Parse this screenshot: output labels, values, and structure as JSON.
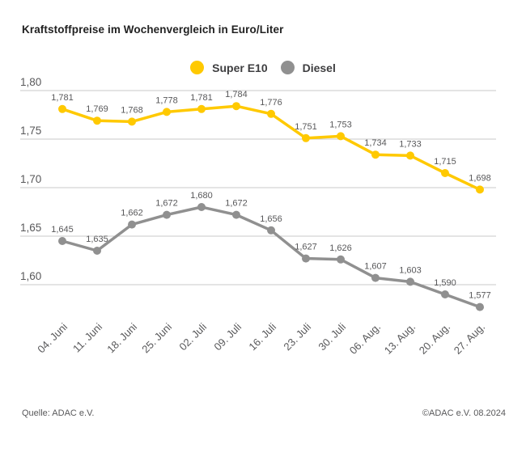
{
  "title": "Kraftstoffpreise im Wochenvergleich in Euro/Liter",
  "legend": [
    {
      "label": "Super E10",
      "color": "#FFC900"
    },
    {
      "label": "Diesel",
      "color": "#909090"
    }
  ],
  "footer": {
    "source": "Quelle: ADAC e.V.",
    "copyright": "©ADAC e.V. 08.2024"
  },
  "colors": {
    "grid": "#c9c9c9",
    "tick_text": "#58585a",
    "label_text": "#58585a",
    "title_text": "#222222"
  },
  "chart_data": {
    "type": "line",
    "title": "Kraftstoffpreise im Wochenvergleich in Euro/Liter",
    "ylabel": "Euro/Liter",
    "xlabel": "",
    "grid": true,
    "legend_position": "top-center",
    "ylim": [
      1.575,
      1.8
    ],
    "yticks": [
      1.8,
      1.75,
      1.7,
      1.65,
      1.6
    ],
    "ytick_labels": [
      "1,80",
      "1,75",
      "1,70",
      "1,65",
      "1,60"
    ],
    "categories": [
      "04. Juni",
      "11. Juni",
      "18. Juni",
      "25. Juni",
      "02. Juli",
      "09. Juli",
      "16. Juli",
      "23. Juli",
      "30. Juli",
      "06. Aug.",
      "13. Aug.",
      "20. Aug.",
      "27. Aug."
    ],
    "series": [
      {
        "name": "Super E10",
        "color": "#FFC900",
        "values": [
          1.781,
          1.769,
          1.768,
          1.778,
          1.781,
          1.784,
          1.776,
          1.751,
          1.753,
          1.734,
          1.733,
          1.715,
          1.698
        ],
        "labels": [
          "1,781",
          "1,769",
          "1,768",
          "1,778",
          "1,781",
          "1,784",
          "1,776",
          "1,751",
          "1,753",
          "1,734",
          "1,733",
          "1,715",
          "1,698"
        ]
      },
      {
        "name": "Diesel",
        "color": "#909090",
        "values": [
          1.645,
          1.635,
          1.662,
          1.672,
          1.68,
          1.672,
          1.656,
          1.627,
          1.626,
          1.607,
          1.603,
          1.59,
          1.577
        ],
        "labels": [
          "1,645",
          "1,635",
          "1,662",
          "1,672",
          "1,680",
          "1,672",
          "1,656",
          "1,627",
          "1,626",
          "1,607",
          "1,603",
          "1,590",
          "1,577"
        ]
      }
    ]
  }
}
